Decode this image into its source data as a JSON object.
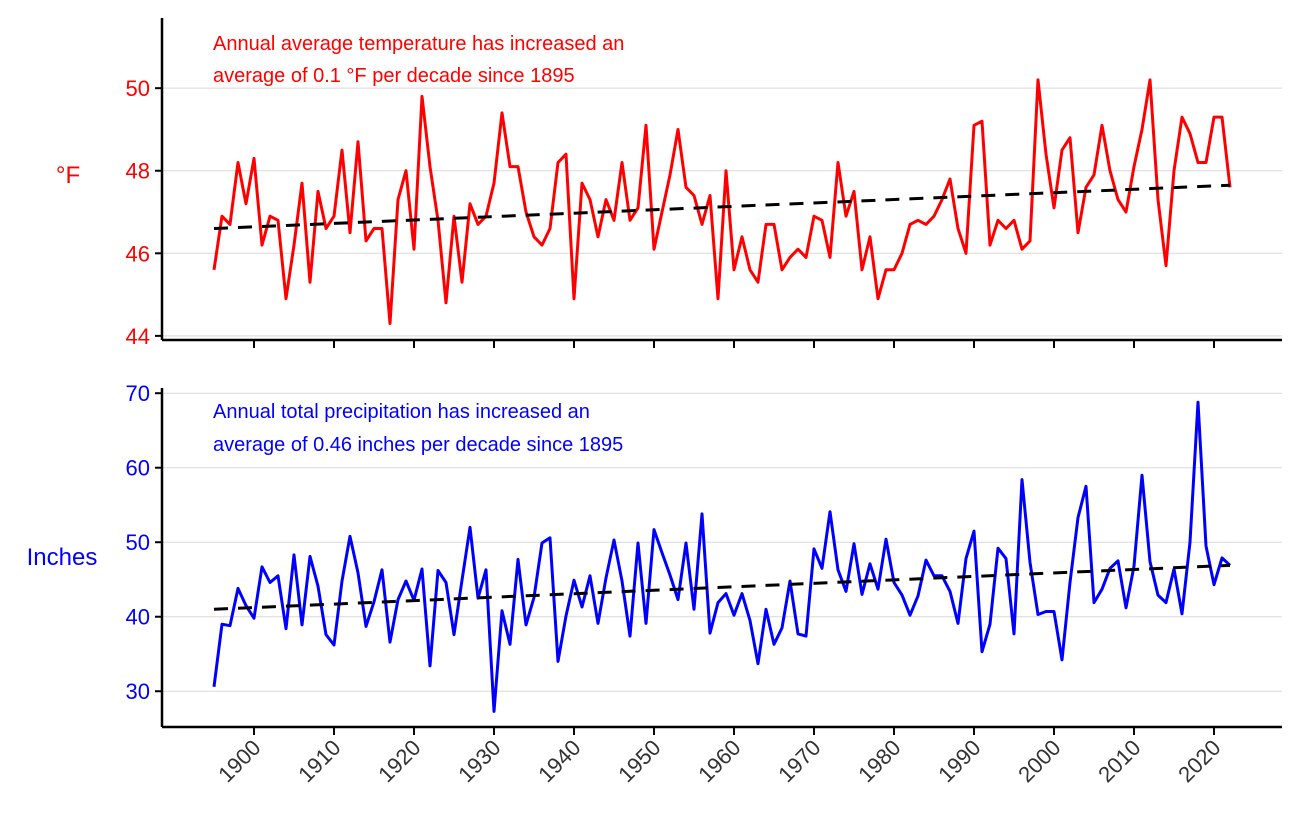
{
  "chart_data": [
    {
      "type": "line",
      "ylabel": "°F",
      "annotation": [
        "Annual average temperature has increased an",
        "average of 0.1 °F per decade since 1895"
      ],
      "color": "#ff0000",
      "trend_color": "#000000",
      "ylim": [
        43.9,
        51.7
      ],
      "xlim": [
        1888.5,
        2028.5
      ],
      "yticks": [
        44,
        46,
        48,
        50
      ],
      "grid": true,
      "start_year": 1895,
      "values": [
        45.6,
        46.9,
        46.7,
        48.2,
        47.2,
        48.3,
        46.2,
        46.9,
        46.8,
        44.9,
        46.2,
        47.7,
        45.3,
        47.5,
        46.6,
        46.9,
        48.5,
        46.5,
        48.7,
        46.3,
        46.6,
        46.6,
        44.3,
        47.3,
        48.0,
        46.1,
        49.8,
        48.1,
        46.8,
        44.8,
        46.9,
        45.3,
        47.2,
        46.7,
        46.9,
        47.7,
        49.4,
        48.1,
        48.1,
        47.0,
        46.4,
        46.2,
        46.6,
        48.2,
        48.4,
        44.9,
        47.7,
        47.3,
        46.4,
        47.3,
        46.8,
        48.2,
        46.8,
        47.1,
        49.1,
        46.1,
        47.0,
        47.9,
        49.0,
        47.6,
        47.4,
        46.7,
        47.4,
        44.9,
        48.0,
        45.6,
        46.4,
        45.6,
        45.3,
        46.7,
        46.7,
        45.6,
        45.9,
        46.1,
        45.9,
        46.9,
        46.8,
        45.9,
        48.2,
        46.9,
        47.5,
        45.6,
        46.4,
        44.9,
        45.6,
        45.6,
        46.0,
        46.7,
        46.8,
        46.7,
        46.9,
        47.3,
        47.8,
        46.6,
        46.0,
        49.1,
        49.2,
        46.2,
        46.8,
        46.6,
        46.8,
        46.1,
        46.3,
        50.2,
        48.4,
        47.1,
        48.5,
        48.8,
        46.5,
        47.6,
        47.9,
        49.1,
        48.0,
        47.3,
        47.0,
        48.1,
        49.0,
        50.2,
        47.3,
        45.7,
        48.0,
        49.3,
        48.9,
        48.2,
        48.2,
        49.3,
        49.3,
        47.6
      ],
      "trend": {
        "x": [
          1895,
          2022
        ],
        "y": [
          46.6,
          47.65
        ]
      }
    },
    {
      "type": "line",
      "ylabel": "Inches",
      "annotation": [
        "Annual total precipitation has increased an",
        "average of 0.46 inches per decade since 1895"
      ],
      "color": "#0000ff",
      "trend_color": "#000000",
      "ylim": [
        25.2,
        70.7
      ],
      "xlim": [
        1888.5,
        2028.5
      ],
      "yticks": [
        30,
        40,
        50,
        60,
        70
      ],
      "grid": true,
      "start_year": 1895,
      "values": [
        30.6,
        39.0,
        38.8,
        43.8,
        41.5,
        39.8,
        46.7,
        44.6,
        45.5,
        38.4,
        48.3,
        38.9,
        48.1,
        44.1,
        37.6,
        36.2,
        44.8,
        50.8,
        45.9,
        38.7,
        42.0,
        46.3,
        36.6,
        42.3,
        44.8,
        42.2,
        46.4,
        33.4,
        46.2,
        44.6,
        37.6,
        44.9,
        52.0,
        42.5,
        46.3,
        27.3,
        40.8,
        36.3,
        47.7,
        38.9,
        42.6,
        49.9,
        50.6,
        34.0,
        40.1,
        44.9,
        41.3,
        45.5,
        39.1,
        45.2,
        50.3,
        44.8,
        37.4,
        49.9,
        39.1,
        51.7,
        48.6,
        45.6,
        42.3,
        49.9,
        41.0,
        53.8,
        37.8,
        41.9,
        43.1,
        40.2,
        43.1,
        39.5,
        33.7,
        41.0,
        36.3,
        38.5,
        44.8,
        37.7,
        37.4,
        49.1,
        46.5,
        54.1,
        46.3,
        43.4,
        49.8,
        43.0,
        47.1,
        43.7,
        50.4,
        44.6,
        42.9,
        40.2,
        42.8,
        47.6,
        45.5,
        45.5,
        43.4,
        39.1,
        47.8,
        51.5,
        35.3,
        39.0,
        49.2,
        47.8,
        37.7,
        58.4,
        47.3,
        40.3,
        40.7,
        40.7,
        34.2,
        44.6,
        53.3,
        57.5,
        41.9,
        43.7,
        46.5,
        47.5,
        41.2,
        46.8,
        59.0,
        47.4,
        42.9,
        41.9,
        46.4,
        40.4,
        50.0,
        68.8,
        49.5,
        44.3,
        47.9,
        46.9
      ],
      "trend": {
        "x": [
          1895,
          2022
        ],
        "y": [
          41.0,
          46.9
        ]
      }
    }
  ],
  "xticks": [
    "1900",
    "1910",
    "1920",
    "1930",
    "1940",
    "1950",
    "1960",
    "1970",
    "1980",
    "1990",
    "2000",
    "2010",
    "2020"
  ]
}
